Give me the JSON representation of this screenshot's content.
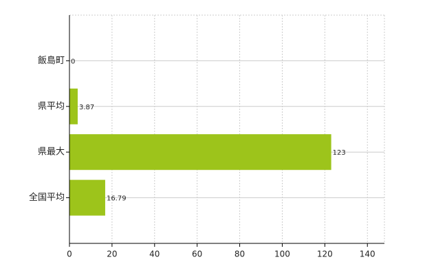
{
  "chart_data": {
    "type": "bar",
    "orientation": "horizontal",
    "categories": [
      "飯島町",
      "県平均",
      "県最大",
      "全国平均"
    ],
    "values": [
      0,
      3.87,
      123,
      16.79
    ],
    "color": "#9dc41b",
    "xlim": [
      0,
      148
    ],
    "xticks": [
      0,
      20,
      40,
      60,
      80,
      100,
      120,
      140
    ],
    "grid": true
  }
}
